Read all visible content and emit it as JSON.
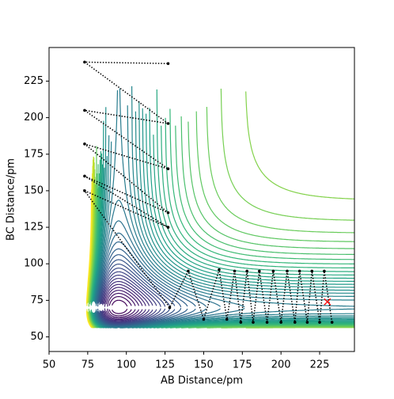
{
  "chart_data": {
    "type": "contour-trajectory",
    "xlabel": "AB Distance/pm",
    "ylabel": "BC Distance/pm",
    "xlim": [
      50,
      247.5
    ],
    "ylim": [
      40,
      248
    ],
    "xticks": [
      50,
      75,
      100,
      125,
      150,
      175,
      200,
      225
    ],
    "yticks": [
      50,
      75,
      100,
      125,
      150,
      175,
      200,
      225
    ],
    "colormap": "viridis",
    "series": [
      {
        "name": "trajectory",
        "color": "#000000",
        "x": [
          233,
          228,
          225,
          220,
          217,
          212,
          209,
          204,
          200,
          195,
          191,
          186,
          182,
          178,
          174,
          170,
          165,
          160,
          150,
          140,
          128,
          73,
          127,
          73,
          127,
          73,
          127,
          73,
          127,
          73,
          127
        ],
        "y": [
          60,
          95,
          60,
          95,
          60,
          95,
          60,
          95,
          60,
          95,
          60,
          95,
          60,
          95,
          60,
          95,
          62,
          96,
          62,
          95,
          70,
          150,
          125,
          160,
          135,
          182,
          165,
          205,
          196,
          238,
          237
        ]
      }
    ],
    "marker": {
      "x": 230,
      "y": 74,
      "color": "#ff0000"
    }
  }
}
